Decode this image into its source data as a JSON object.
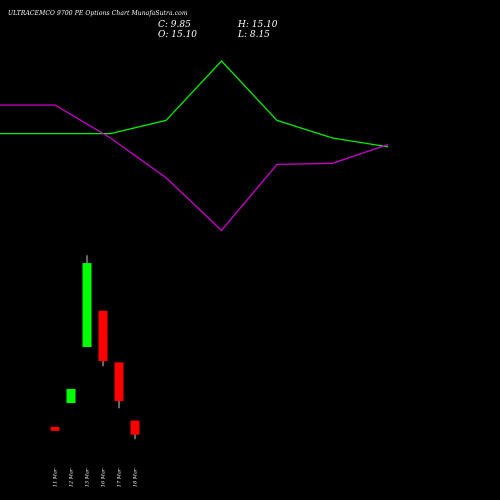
{
  "header": {
    "title": "ULTRACEMCO 9700  PE Options  Chart MunafaSutra.com",
    "close_text": "C: 9.85",
    "open_text": "O: 15.10",
    "high_text": "H: 15.10",
    "low_text": "L: 8.15"
  },
  "chart_data": [
    {
      "type": "line",
      "title": "",
      "x": [
        0,
        1,
        2,
        3,
        4,
        5,
        6
      ],
      "xlim": [
        -1,
        6
      ],
      "ylim": [
        0,
        100
      ],
      "grid": false,
      "series": [
        {
          "color": "#00ee00",
          "values": [
            62,
            62,
            68,
            95,
            68,
            60,
            56
          ],
          "start_value": 62
        },
        {
          "color": "#cc00cc",
          "values": [
            75,
            60,
            42,
            18,
            48,
            48.5,
            57
          ],
          "start_value": 75
        }
      ]
    },
    {
      "type": "candlestick",
      "categories": [
        "11 Mar",
        "12 Mar",
        "13 Mar",
        "16 Mar",
        "17 Mar",
        "18 Mar"
      ],
      "ylim": [
        7,
        38
      ],
      "grid": false,
      "up_color": "#00ff00",
      "down_color": "#ff0000",
      "candles": [
        {
          "open": 9.8,
          "high": 9.8,
          "low": 9.2,
          "close": 9.2
        },
        {
          "open": 13.5,
          "high": 15.7,
          "low": 13.5,
          "close": 15.7
        },
        {
          "open": 22.2,
          "high": 36.4,
          "low": 22.2,
          "close": 35.2
        },
        {
          "open": 27.8,
          "high": 27.8,
          "low": 19.2,
          "close": 20.0
        },
        {
          "open": 19.8,
          "high": 19.8,
          "low": 12.7,
          "close": 13.8
        },
        {
          "open": 10.8,
          "high": 10.8,
          "low": 7.9,
          "close": 8.6
        }
      ]
    }
  ]
}
